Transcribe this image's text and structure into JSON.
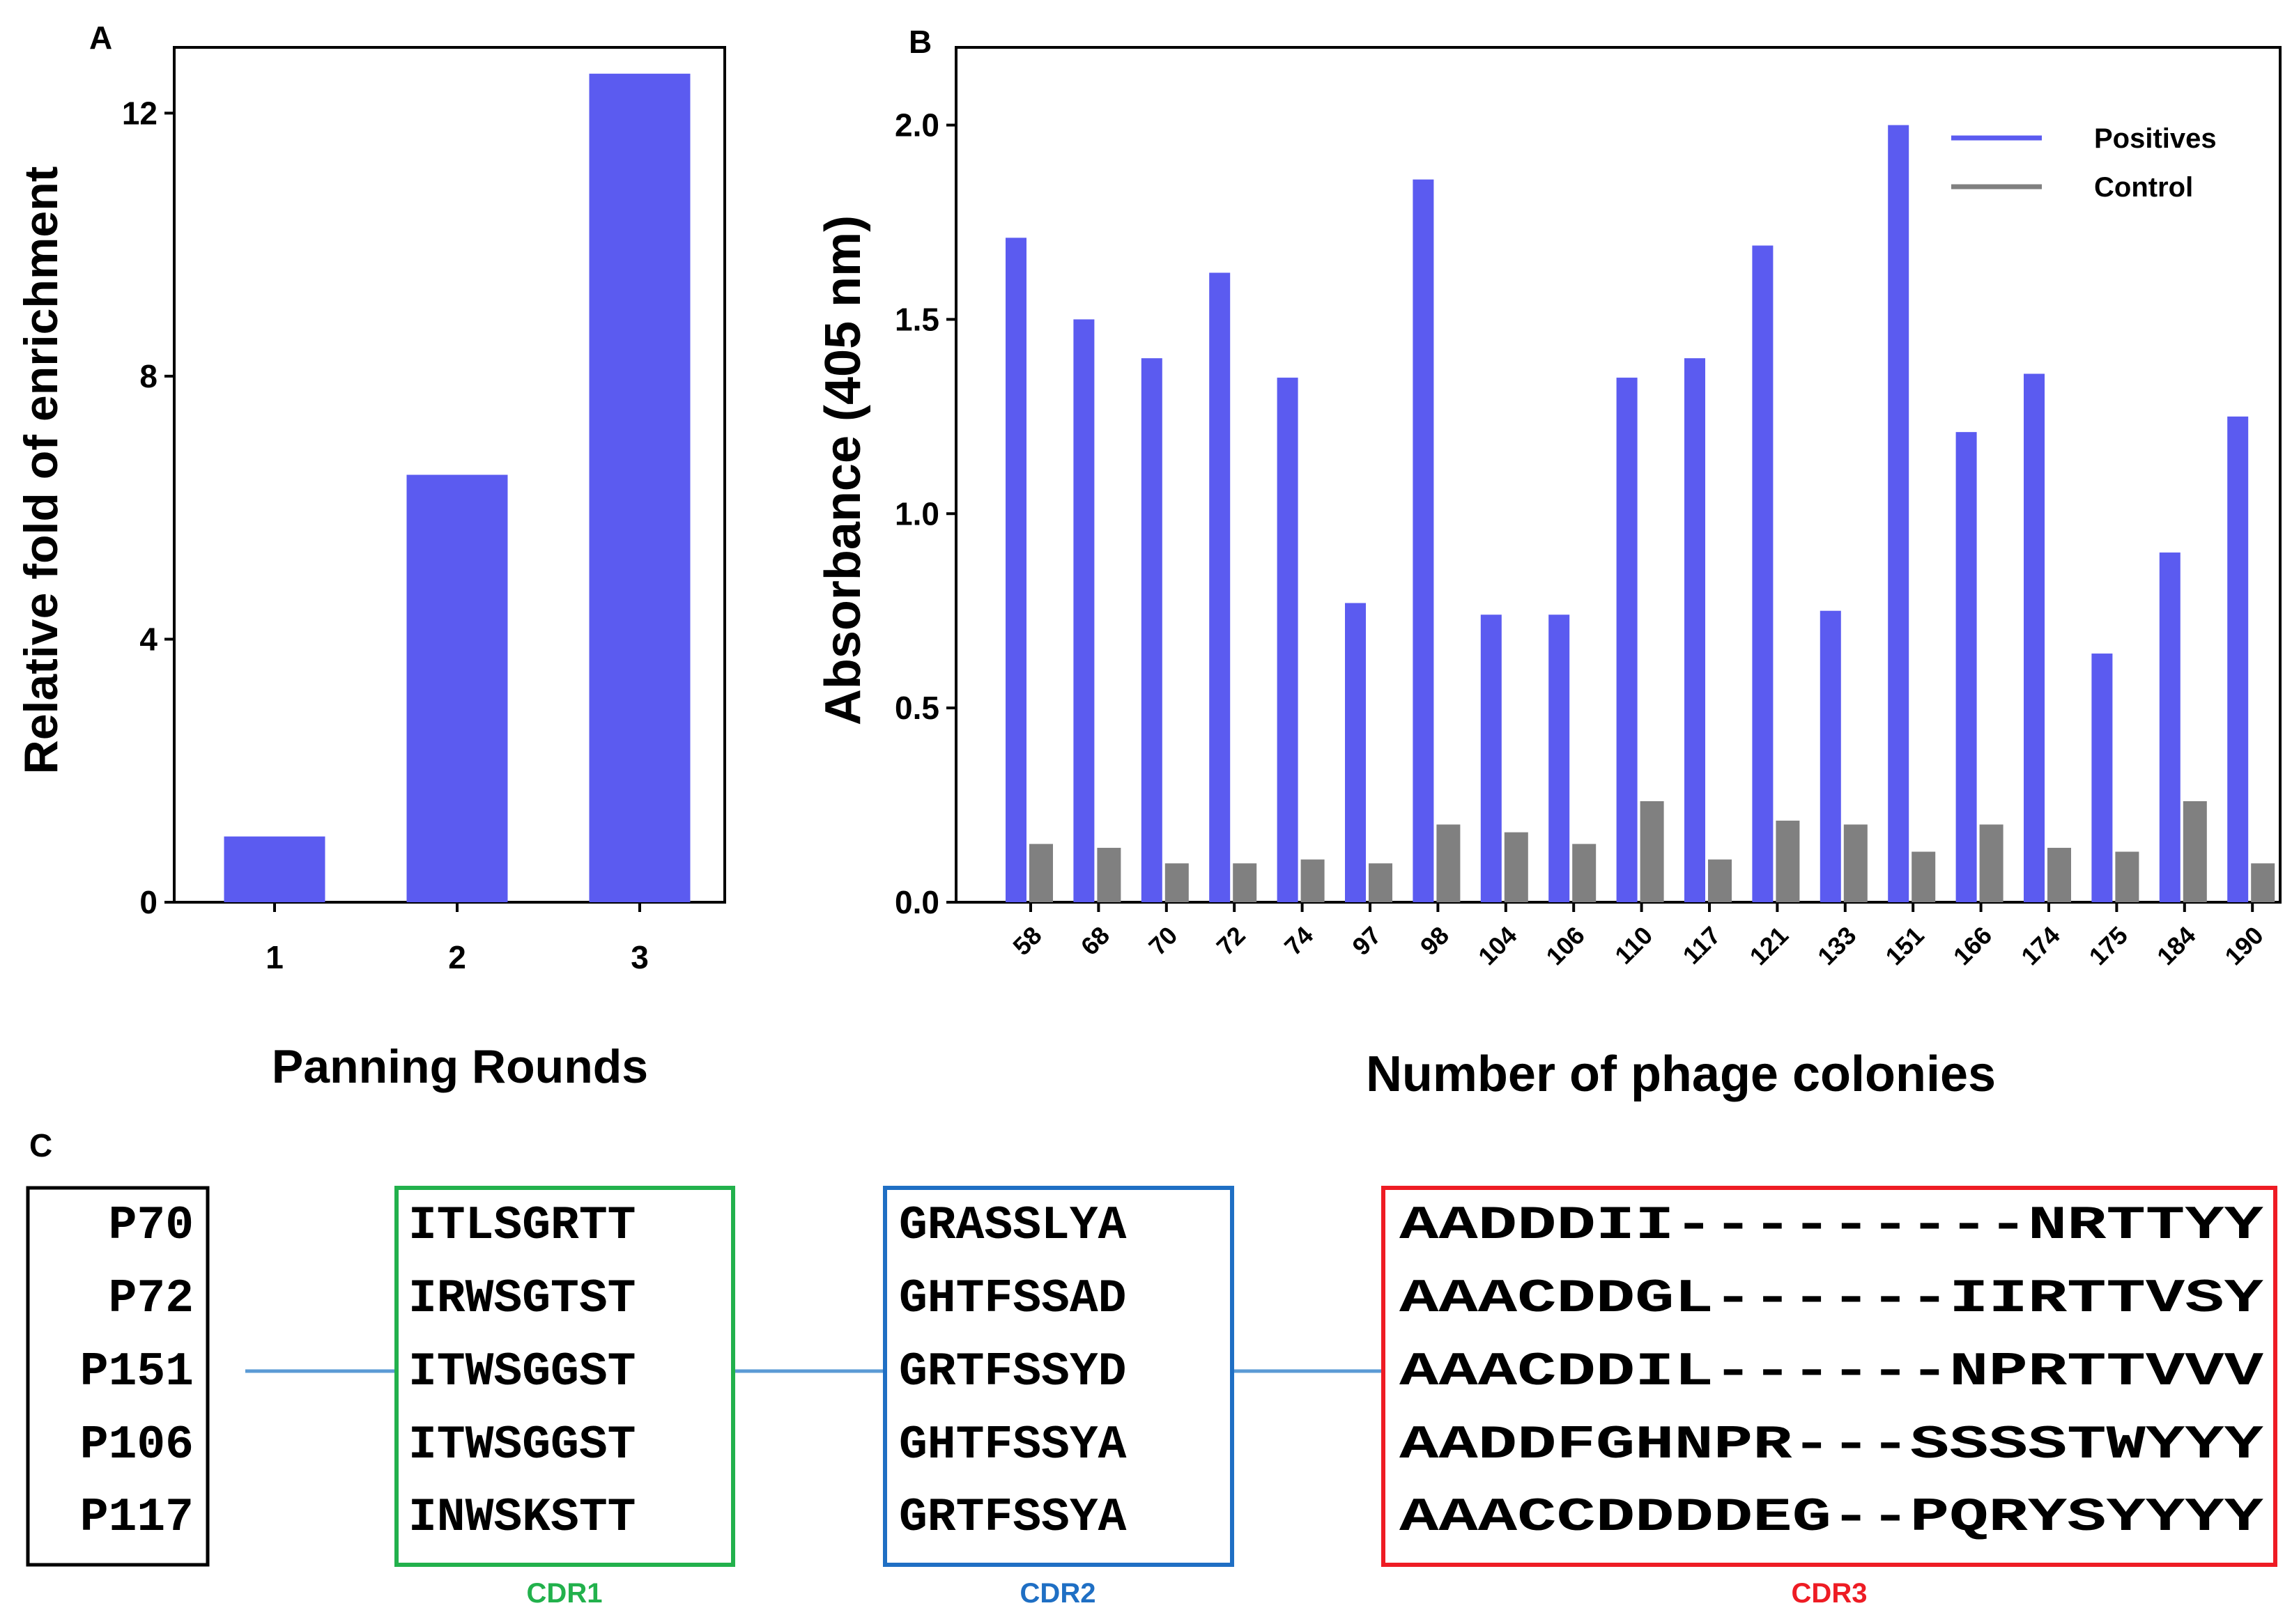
{
  "colors": {
    "positive": "#5b5bf0",
    "control": "#808080",
    "cdr1": "#22b14c",
    "cdr2": "#1f6fc4",
    "cdr3": "#ee1c24",
    "connector": "#5b9bd5"
  },
  "panels": {
    "a": "A",
    "b": "B",
    "c": "C"
  },
  "chart_data": [
    {
      "type": "bar",
      "panel": "A",
      "categories": [
        "1",
        "2",
        "3"
      ],
      "values": [
        1.0,
        6.5,
        12.6
      ],
      "title": "",
      "xlabel": "Panning Rounds",
      "ylabel": "Relative fold of enrichment",
      "ylim": [
        0,
        13
      ],
      "yticks": [
        0,
        4,
        8,
        12
      ],
      "ytick_labels": [
        "0",
        "4",
        "8",
        "12"
      ]
    },
    {
      "type": "bar",
      "panel": "B",
      "categories": [
        "58",
        "68",
        "70",
        "72",
        "74",
        "97",
        "98",
        "104",
        "106",
        "110",
        "117",
        "121",
        "133",
        "151",
        "166",
        "174",
        "175",
        "184",
        "190"
      ],
      "series": [
        {
          "name": "Positives",
          "values": [
            1.71,
            1.5,
            1.4,
            1.62,
            1.35,
            0.77,
            1.86,
            0.74,
            0.74,
            1.35,
            1.4,
            1.69,
            0.75,
            2.0,
            1.21,
            1.36,
            0.64,
            0.9,
            1.25
          ]
        },
        {
          "name": "Control",
          "values": [
            0.15,
            0.14,
            0.1,
            0.1,
            0.11,
            0.1,
            0.2,
            0.18,
            0.15,
            0.26,
            0.11,
            0.21,
            0.2,
            0.13,
            0.2,
            0.14,
            0.13,
            0.26,
            0.1
          ]
        }
      ],
      "title": "",
      "xlabel": "Number of phage colonies",
      "ylabel": "Absorbance (405 nm)",
      "ylim": [
        0,
        2.2
      ],
      "yticks": [
        0,
        0.5,
        1.0,
        1.5,
        2.0
      ],
      "ytick_labels": [
        "0.0",
        "0.5",
        "1.0",
        "1.5",
        "2.0"
      ],
      "legend_position": "top-right"
    }
  ],
  "alignment": {
    "clones": [
      "P70",
      "P72",
      "P151",
      "P106",
      "P117"
    ],
    "cdrs": [
      {
        "label": "CDR1",
        "color": "#22b14c",
        "rows": [
          "ITLSGRTT",
          "IRWSGTST",
          "ITWSGGST",
          "ITWSGGST",
          "INWSKSTT"
        ]
      },
      {
        "label": "CDR2",
        "color": "#1f6fc4",
        "rows": [
          "GRASSLYA",
          "GHTFSSAD",
          "GRTFSSYD",
          "GHTFSSYA",
          "GRTFSSYA"
        ]
      },
      {
        "label": "CDR3",
        "color": "#ee1c24",
        "rows": [
          "AADDDII---------NRTTYY",
          "AAACDDGL------IIRTTVSY",
          "AAACDDIL------NPRTTVVV",
          "AADDFGHNPR---SSSSTWYYY",
          "AAACCDDDDEG--PQRYSYYYY"
        ]
      }
    ]
  }
}
